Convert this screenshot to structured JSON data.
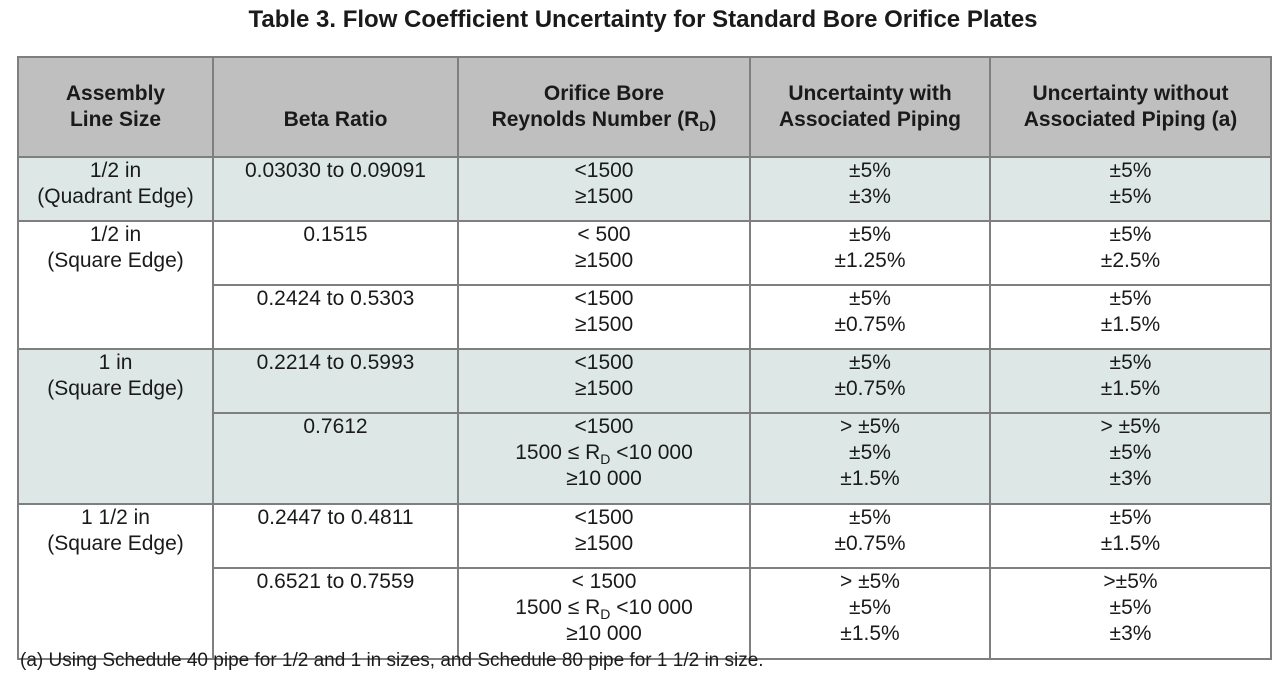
{
  "title": "Table 3.  Flow Coefficient Uncertainty for Standard Bore Orifice Plates",
  "headers": {
    "assembly_1": "Assembly",
    "assembly_2": "Line Size",
    "beta": "Beta Ratio",
    "reynolds_1": "Orifice Bore",
    "reynolds_2": "Reynolds Number (R",
    "reynolds_sub": "D",
    "reynolds_end": ")",
    "with_1": "Uncertainty with",
    "with_2": "Associated Piping",
    "without_1": "Uncertainty without",
    "without_2": "Associated Piping (a)"
  },
  "rows": [
    {
      "size": [
        "1/2 in",
        "(Quadrant Edge)"
      ],
      "beta": "0.03030 to 0.09091",
      "re": [
        "<1500",
        "≥1500"
      ],
      "with": [
        "±5%",
        "±3%"
      ],
      "without": [
        "±5%",
        "±5%"
      ]
    },
    {
      "size": [
        "1/2 in",
        "(Square Edge)"
      ],
      "beta": "0.1515",
      "re": [
        "< 500",
        "≥1500"
      ],
      "with": [
        "±5%",
        "±1.25%"
      ],
      "without": [
        "±5%",
        "±2.5%"
      ]
    },
    {
      "beta": "0.2424 to 0.5303",
      "re": [
        "<1500",
        "≥1500"
      ],
      "with": [
        "±5%",
        "±0.75%"
      ],
      "without": [
        "±5%",
        "±1.5%"
      ]
    },
    {
      "size": [
        "1 in",
        "(Square Edge)"
      ],
      "beta": "0.2214 to 0.5993",
      "re": [
        "<1500",
        "≥1500"
      ],
      "with": [
        "±5%",
        "±0.75%"
      ],
      "without": [
        "±5%",
        "±1.5%"
      ]
    },
    {
      "beta": "0.7612",
      "re": [
        "<1500",
        "1500 ≤ R",
        "D",
        " <10 000",
        "≥10 000"
      ],
      "with": [
        "> ±5%",
        "±5%",
        "±1.5%"
      ],
      "without": [
        "> ±5%",
        "±5%",
        "±3%"
      ]
    },
    {
      "size": [
        "1 1/2 in",
        "(Square Edge)"
      ],
      "beta": "0.2447 to 0.4811",
      "re": [
        "<1500",
        "≥1500"
      ],
      "with": [
        "±5%",
        "±0.75%"
      ],
      "without": [
        "±5%",
        "±1.5%"
      ]
    },
    {
      "beta": "0.6521 to 0.7559",
      "re": [
        "< 1500",
        "1500 ≤ R",
        "D",
        " <10 000",
        "≥10 000"
      ],
      "with": [
        "> ±5%",
        "±5%",
        "±1.5%"
      ],
      "without": [
        ">±5%",
        "±5%",
        "±3%"
      ]
    }
  ],
  "footnote": "(a)  Using Schedule 40 pipe for 1/2 and 1 in sizes, and Schedule 80 pipe for 1 1/2 in size."
}
